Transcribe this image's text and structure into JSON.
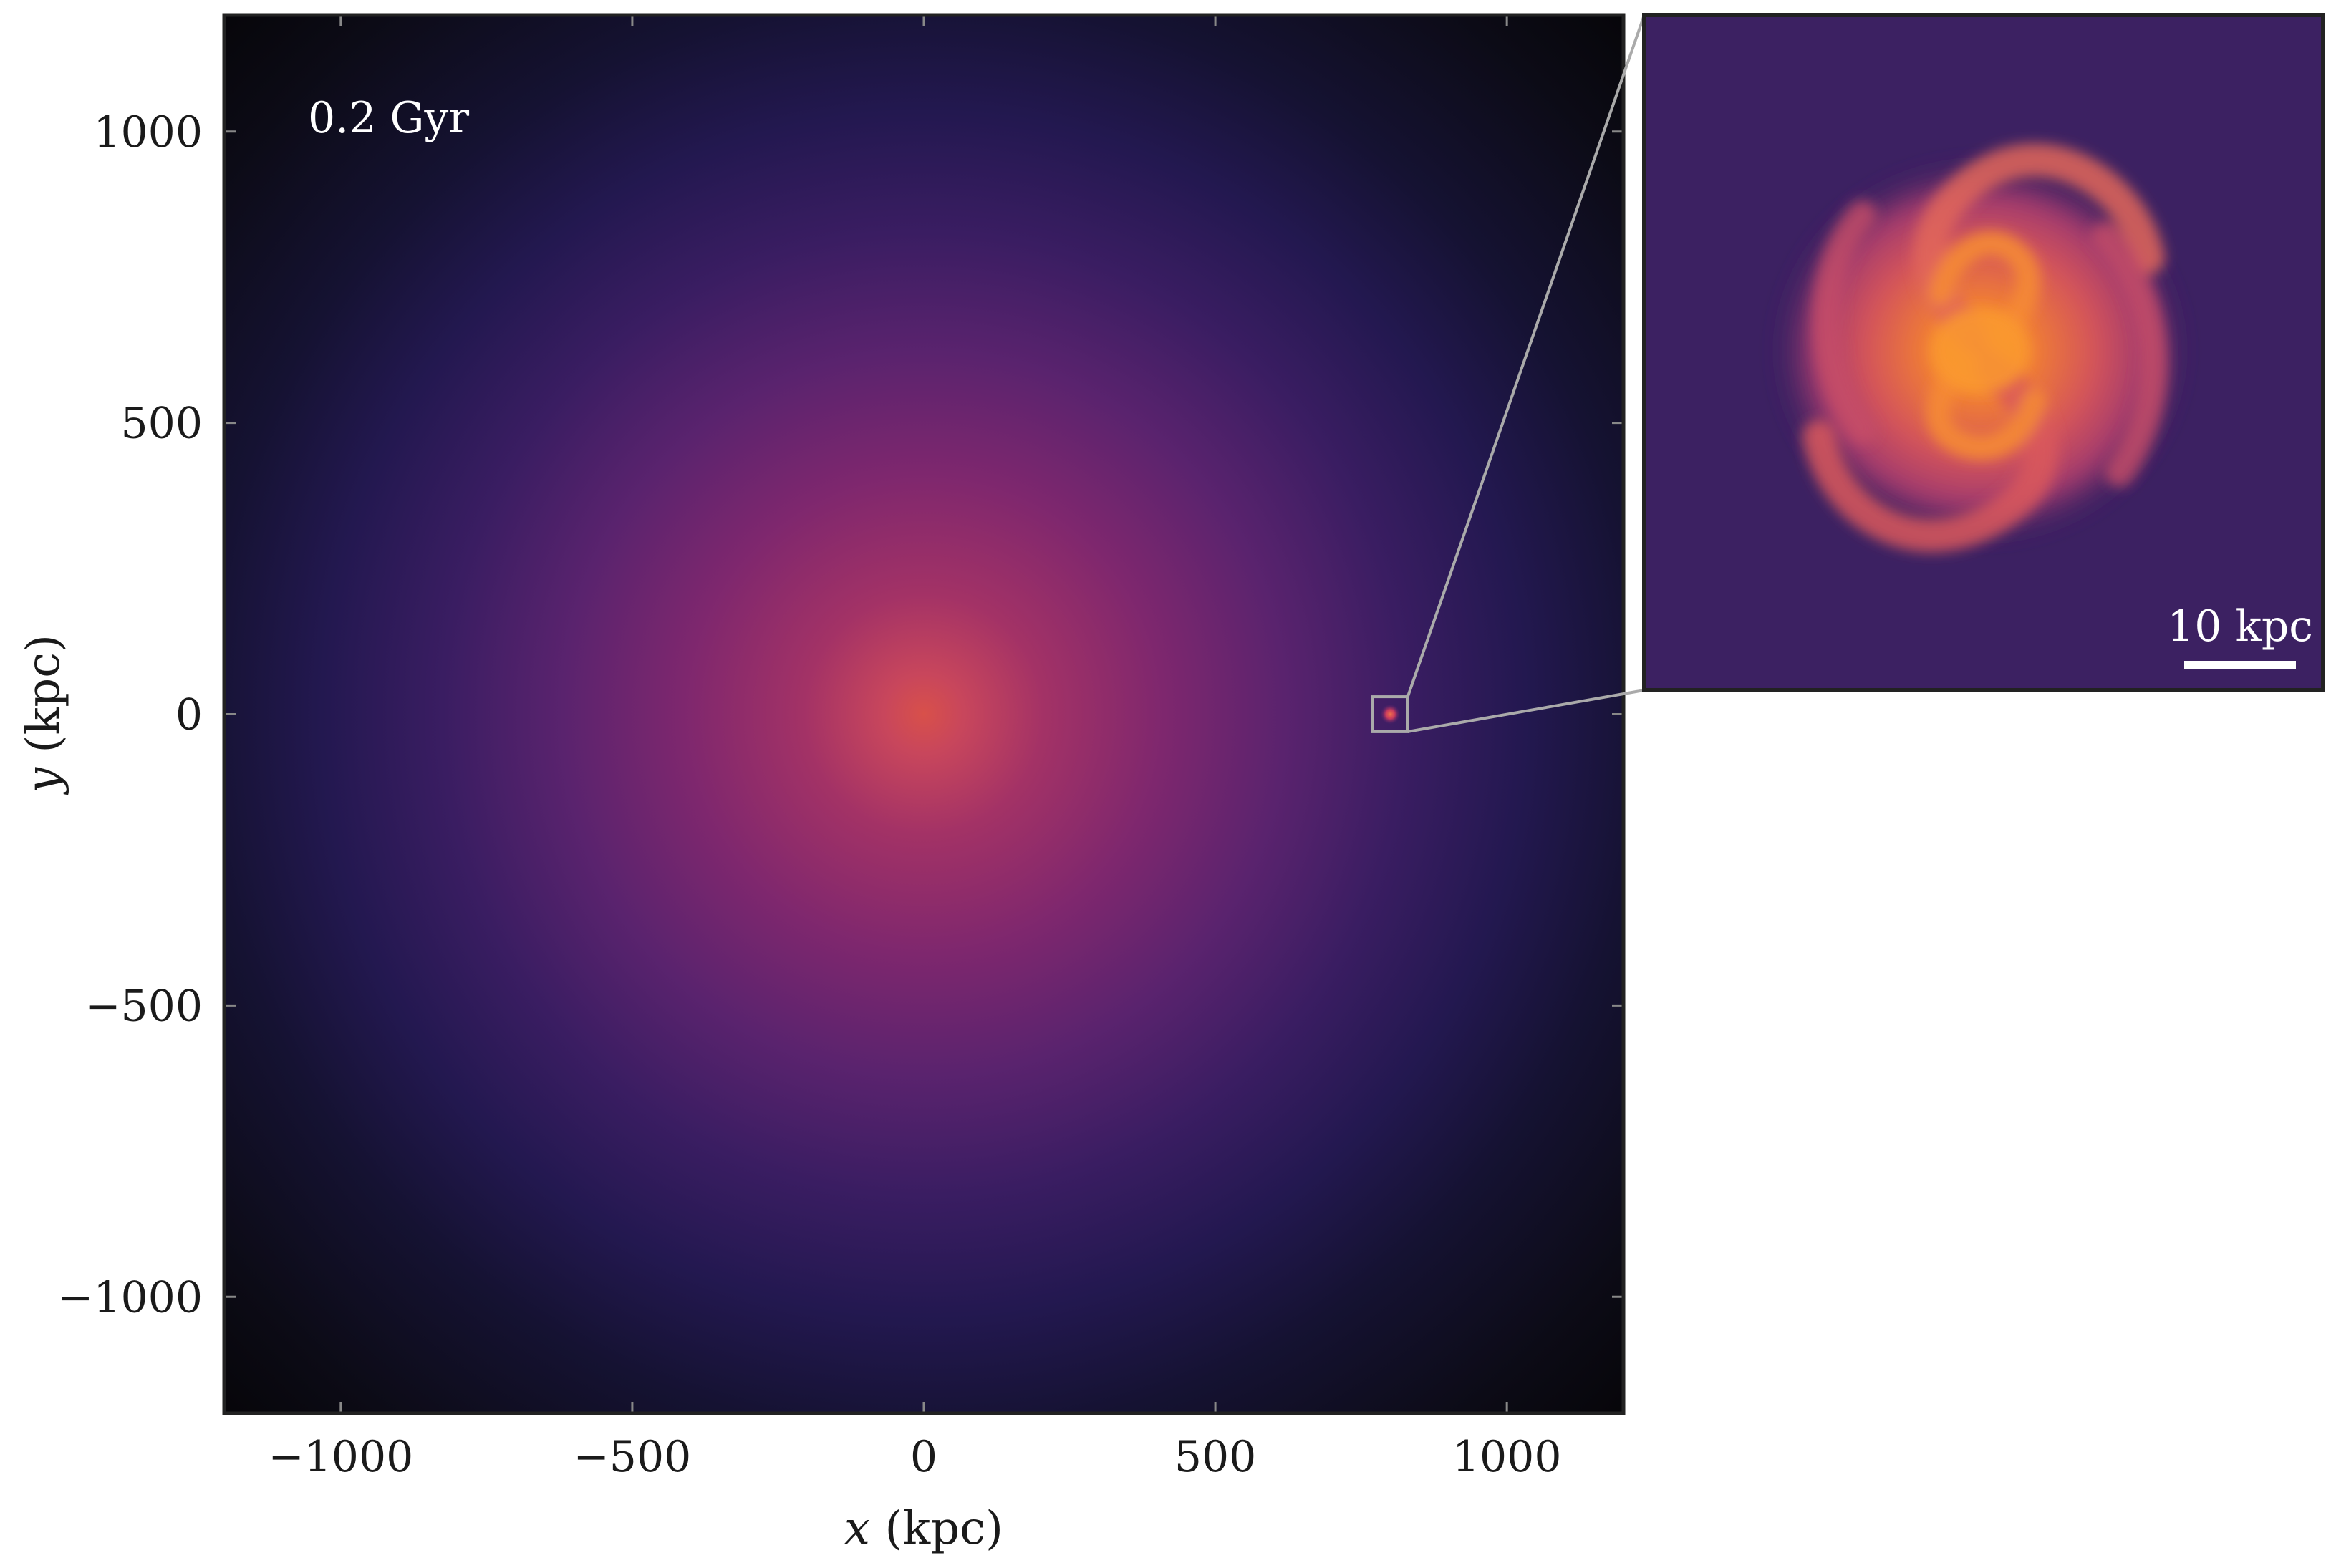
{
  "chart_data": {
    "type": "heatmap",
    "title": "",
    "xlabel_var": "x",
    "xlabel_unit": " (kpc)",
    "ylabel_var": "y",
    "ylabel_unit": " (kpc)",
    "xlim": [
      -1200,
      1200
    ],
    "ylim": [
      -1200,
      1200
    ],
    "xticks": [
      -1000,
      -500,
      0,
      500,
      1000
    ],
    "yticks": [
      -1000,
      -500,
      0,
      500,
      1000
    ],
    "xtick_labels": [
      "−1000",
      "−500",
      "0",
      "500",
      "1000"
    ],
    "ytick_labels": [
      "−1000",
      "−500",
      "0",
      "500",
      "1000"
    ],
    "time_label": "0.2 Gyr",
    "colormap": "magma",
    "halo_center": [
      0,
      0
    ],
    "zoom_region": {
      "center": [
        800,
        0
      ],
      "half_width": 30
    },
    "inset": {
      "scale_bar_label": "10 kpc",
      "scale_bar_kpc": 10
    },
    "colors": {
      "frame": "#222222",
      "zoom_line": "#aaaaaa",
      "halo_core": "#d8504a",
      "halo_outer": "#0b0a14",
      "inset_background": "#3c2162",
      "disk_core": "#f78c2a",
      "scale_text": "#ffffff"
    }
  }
}
